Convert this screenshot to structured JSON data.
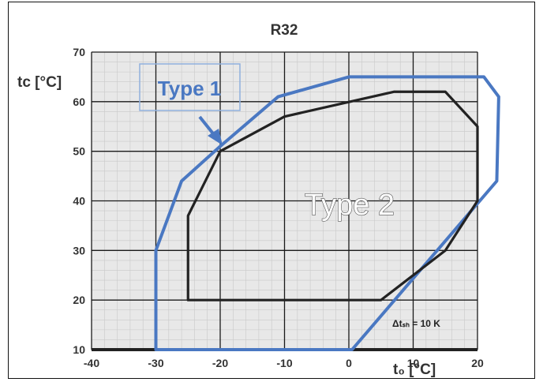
{
  "chart_data": {
    "type": "line",
    "title": "R32",
    "xlabel": "t₀ [°C]",
    "ylabel": "tᴄ [°C]",
    "xlim": [
      -40,
      20
    ],
    "ylim": [
      10,
      70
    ],
    "x_ticks": [
      "-40",
      "-30",
      "-20",
      "-10",
      "0",
      "10",
      "20"
    ],
    "y_ticks": [
      "10",
      "20",
      "30",
      "40",
      "50",
      "60",
      "70"
    ],
    "grid": true,
    "series": [
      {
        "name": "Type 1",
        "color": "#4a78c2",
        "closed": true,
        "points": [
          [
            -30,
            10
          ],
          [
            0.5,
            10
          ],
          [
            23,
            44
          ],
          [
            23.3,
            61
          ],
          [
            21,
            65
          ],
          [
            0,
            65
          ],
          [
            -11,
            61
          ],
          [
            -20,
            51
          ],
          [
            -26,
            44
          ],
          [
            -30,
            30
          ]
        ]
      },
      {
        "name": "Type 2",
        "color": "#222222",
        "closed": true,
        "points": [
          [
            -25,
            20
          ],
          [
            5,
            20
          ],
          [
            15,
            30
          ],
          [
            20,
            40
          ],
          [
            20,
            55
          ],
          [
            15,
            62
          ],
          [
            7,
            62
          ],
          [
            -10,
            57
          ],
          [
            -20,
            50
          ],
          [
            -25,
            37
          ]
        ]
      }
    ],
    "annotations": {
      "type1_label": "Type 1",
      "type2_label": "Type 2",
      "superheat_note": "Δtₛₕ = 10 K"
    }
  }
}
